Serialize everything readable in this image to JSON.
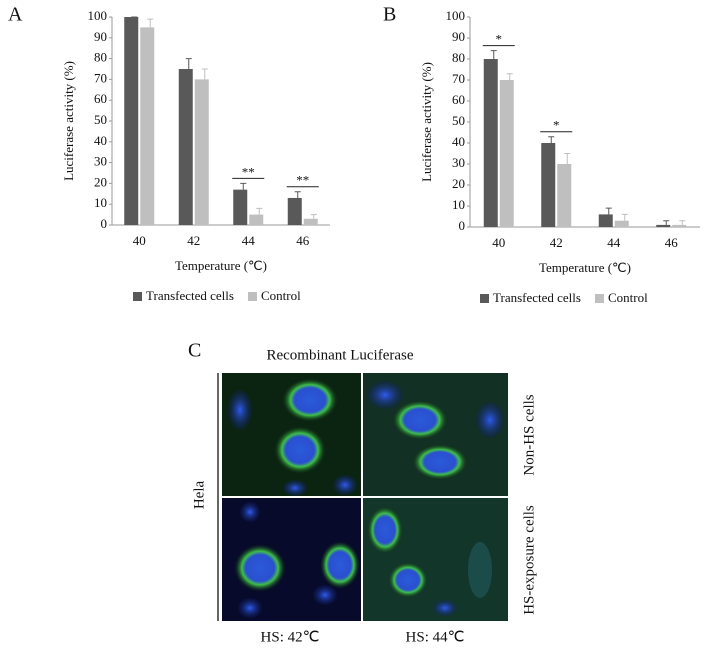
{
  "chart_data": [
    {
      "type": "bar",
      "panel": "A",
      "xlabel": "Temperature (℃)",
      "ylabel": "Luciferase activity (%)",
      "categories": [
        "40",
        "42",
        "44",
        "46"
      ],
      "series": [
        {
          "name": "Transfected cells",
          "color": "#595959",
          "values": [
            100,
            75,
            17,
            13
          ],
          "errors": [
            0,
            5,
            3,
            3
          ]
        },
        {
          "name": "Control",
          "color": "#bfbfbf",
          "values": [
            95,
            70,
            5,
            3
          ],
          "errors": [
            4,
            5,
            3,
            2
          ]
        }
      ],
      "significance": [
        null,
        null,
        "**",
        "**"
      ],
      "ylim": [
        0,
        100
      ],
      "yticks": [
        0,
        10,
        20,
        30,
        40,
        50,
        60,
        70,
        80,
        90,
        100
      ]
    },
    {
      "type": "bar",
      "panel": "B",
      "xlabel": "Temperature (℃)",
      "ylabel": "Luciferase activity (%)",
      "categories": [
        "40",
        "42",
        "44",
        "46"
      ],
      "series": [
        {
          "name": "Transfected cells",
          "color": "#595959",
          "values": [
            80,
            40,
            6,
            1
          ],
          "errors": [
            4,
            3,
            3,
            2
          ]
        },
        {
          "name": "Control",
          "color": "#bfbfbf",
          "values": [
            70,
            30,
            3,
            1
          ],
          "errors": [
            3,
            5,
            3,
            2
          ]
        }
      ],
      "significance": [
        "*",
        "*",
        null,
        null
      ],
      "ylim": [
        0,
        100
      ],
      "yticks": [
        0,
        10,
        20,
        30,
        40,
        50,
        60,
        70,
        80,
        90,
        100
      ]
    }
  ],
  "panel_c": {
    "label": "C",
    "title": "Recombinant Luciferase",
    "cell_line": "Hela",
    "row_labels": [
      "Non-HS cells",
      "HS-exposure cells"
    ],
    "column_labels": [
      "HS: 42℃",
      "HS: 44℃"
    ]
  }
}
